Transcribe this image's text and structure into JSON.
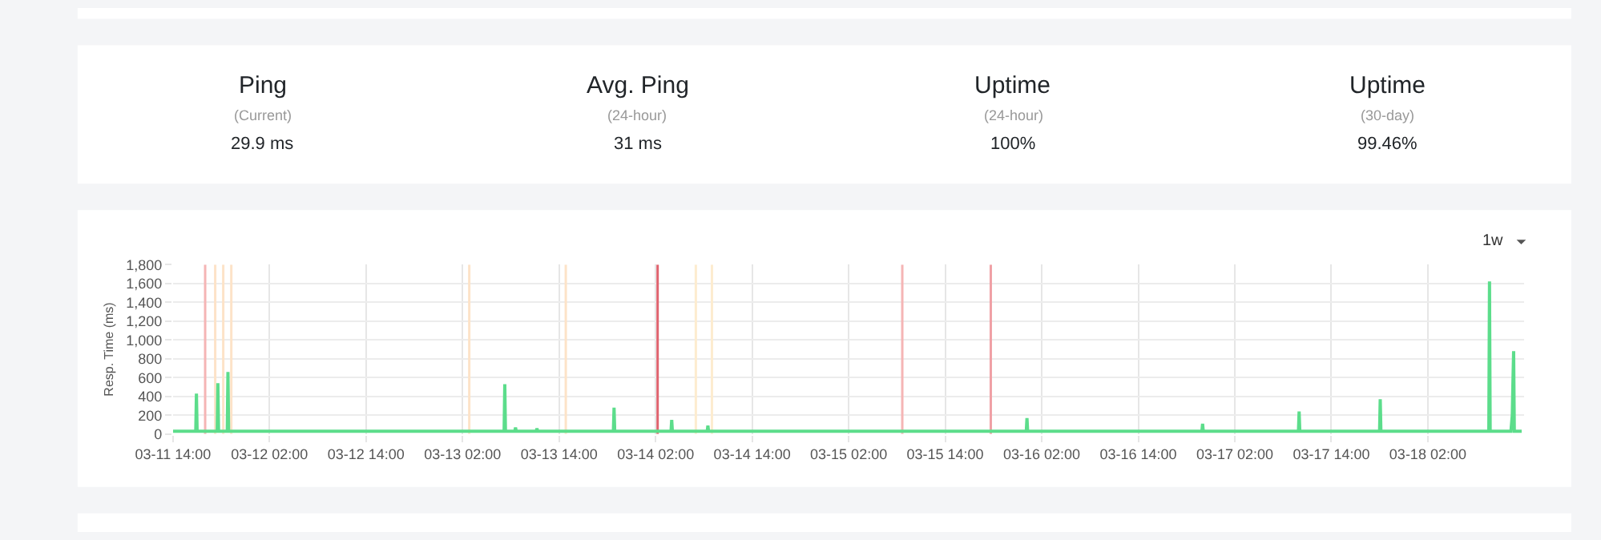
{
  "chart_data": [
    {
      "type": "other",
      "annotations": [
        "Ping",
        "(Current)",
        "29.9 ms",
        "Avg. Ping",
        "(24-hour)",
        "31 ms",
        "Uptime",
        "(24-hour)",
        "100%",
        "Uptime",
        "(30-day)",
        "99.46%"
      ]
    },
    {
      "type": "line",
      "ylabel": "Resp. Time (ms)",
      "annotations": [
        "1w"
      ],
      "grid": true,
      "marker": "none",
      "line_style": "solid",
      "xlim": [
        "--03-11T14:00",
        "--03-18T14:00"
      ],
      "xticks": [
        {
          "value": "--03-11T14:00",
          "label": "03-11 14:00"
        },
        {
          "value": "--03-12T02:00",
          "label": "03-12 02:00"
        },
        {
          "value": "--03-12T14:00",
          "label": "03-12 14:00"
        },
        {
          "value": "--03-13T02:00",
          "label": "03-13 02:00"
        },
        {
          "value": "--03-13T14:00",
          "label": "03-13 14:00"
        },
        {
          "value": "--03-14T02:00",
          "label": "03-14 02:00"
        },
        {
          "value": "--03-14T14:00",
          "label": "03-14 14:00"
        },
        {
          "value": "--03-15T02:00",
          "label": "03-15 02:00"
        },
        {
          "value": "--03-15T14:00",
          "label": "03-15 14:00"
        },
        {
          "value": "--03-16T02:00",
          "label": "03-16 02:00"
        },
        {
          "value": "--03-16T14:00",
          "label": "03-16 14:00"
        },
        {
          "value": "--03-17T02:00",
          "label": "03-17 02:00"
        },
        {
          "value": "--03-17T14:00",
          "label": "03-17 14:00"
        },
        {
          "value": "--03-18T02:00",
          "label": "03-18 02:00"
        }
      ],
      "ylim": [
        0,
        1800
      ],
      "yticks": [
        0,
        200,
        400,
        600,
        800,
        {
          "value": 1000,
          "label": "1,000"
        },
        {
          "value": 1200,
          "label": "1,200"
        },
        {
          "value": 1400,
          "label": "1,400"
        },
        {
          "value": 1600,
          "label": "1,600"
        },
        {
          "value": 1800,
          "label": "1,800"
        }
      ],
      "ref_lines": [
        {
          "axis": "x",
          "value": "--03-11T18:00",
          "color": "#f5b5b5"
        },
        {
          "axis": "x",
          "value": "--03-11T19:15",
          "color": "#fde3c8"
        },
        {
          "axis": "x",
          "value": "--03-11T20:15",
          "color": "#fde3c8"
        },
        {
          "axis": "x",
          "value": "--03-11T21:15",
          "color": "#fde3c8"
        },
        {
          "axis": "x",
          "value": "--03-13T02:50",
          "color": "#fde3c8"
        },
        {
          "axis": "x",
          "value": "--03-13T14:50",
          "color": "#fde3c8"
        },
        {
          "axis": "x",
          "value": "--03-14T02:15",
          "color": "#e0636e"
        },
        {
          "axis": "x",
          "value": "--03-14T07:00",
          "color": "#fdeccf"
        },
        {
          "axis": "x",
          "value": "--03-14T09:00",
          "color": "#fdeccf"
        },
        {
          "axis": "x",
          "value": "--03-15T08:40",
          "color": "#f5b5b5"
        },
        {
          "axis": "x",
          "value": "--03-15T19:40",
          "color": "#f0a0a5"
        }
      ],
      "series": [
        {
          "color": "#5cdd8b",
          "x": [
            "--03-11T14:00",
            "--03-11T16:50",
            "--03-11T16:55",
            "--03-11T17:00",
            "--03-11T19:30",
            "--03-11T19:35",
            "--03-11T19:40",
            "--03-11T20:45",
            "--03-11T20:50",
            "--03-11T20:55",
            "--03-13T07:10",
            "--03-13T07:15",
            "--03-13T07:20",
            "--03-13T08:30",
            "--03-13T08:35",
            "--03-13T08:40",
            "--03-13T11:10",
            "--03-13T11:15",
            "--03-13T11:20",
            "--03-13T20:45",
            "--03-13T20:50",
            "--03-13T20:55",
            "--03-14T03:55",
            "--03-14T04:00",
            "--03-14T04:05",
            "--03-14T08:25",
            "--03-14T08:30",
            "--03-14T08:35",
            "--03-16T00:05",
            "--03-16T00:10",
            "--03-16T00:15",
            "--03-16T21:55",
            "--03-16T22:00",
            "--03-16T22:05",
            "--03-17T09:55",
            "--03-17T10:00",
            "--03-17T10:05",
            "--03-17T20:00",
            "--03-17T20:05",
            "--03-17T20:10",
            "--03-18T09:35",
            "--03-18T09:40",
            "--03-18T09:45",
            "--03-18T12:20",
            "--03-18T12:30",
            "--03-18T12:35",
            "--03-18T12:40",
            "--03-18T12:45",
            "--03-18T13:40"
          ],
          "values": [
            30,
            30,
            430,
            30,
            30,
            540,
            30,
            30,
            660,
            30,
            30,
            530,
            30,
            30,
            70,
            30,
            30,
            60,
            30,
            30,
            280,
            30,
            30,
            150,
            30,
            30,
            90,
            30,
            30,
            170,
            30,
            30,
            110,
            30,
            30,
            240,
            30,
            30,
            370,
            30,
            30,
            1620,
            30,
            30,
            200,
            560,
            880,
            30,
            30
          ]
        }
      ]
    }
  ]
}
